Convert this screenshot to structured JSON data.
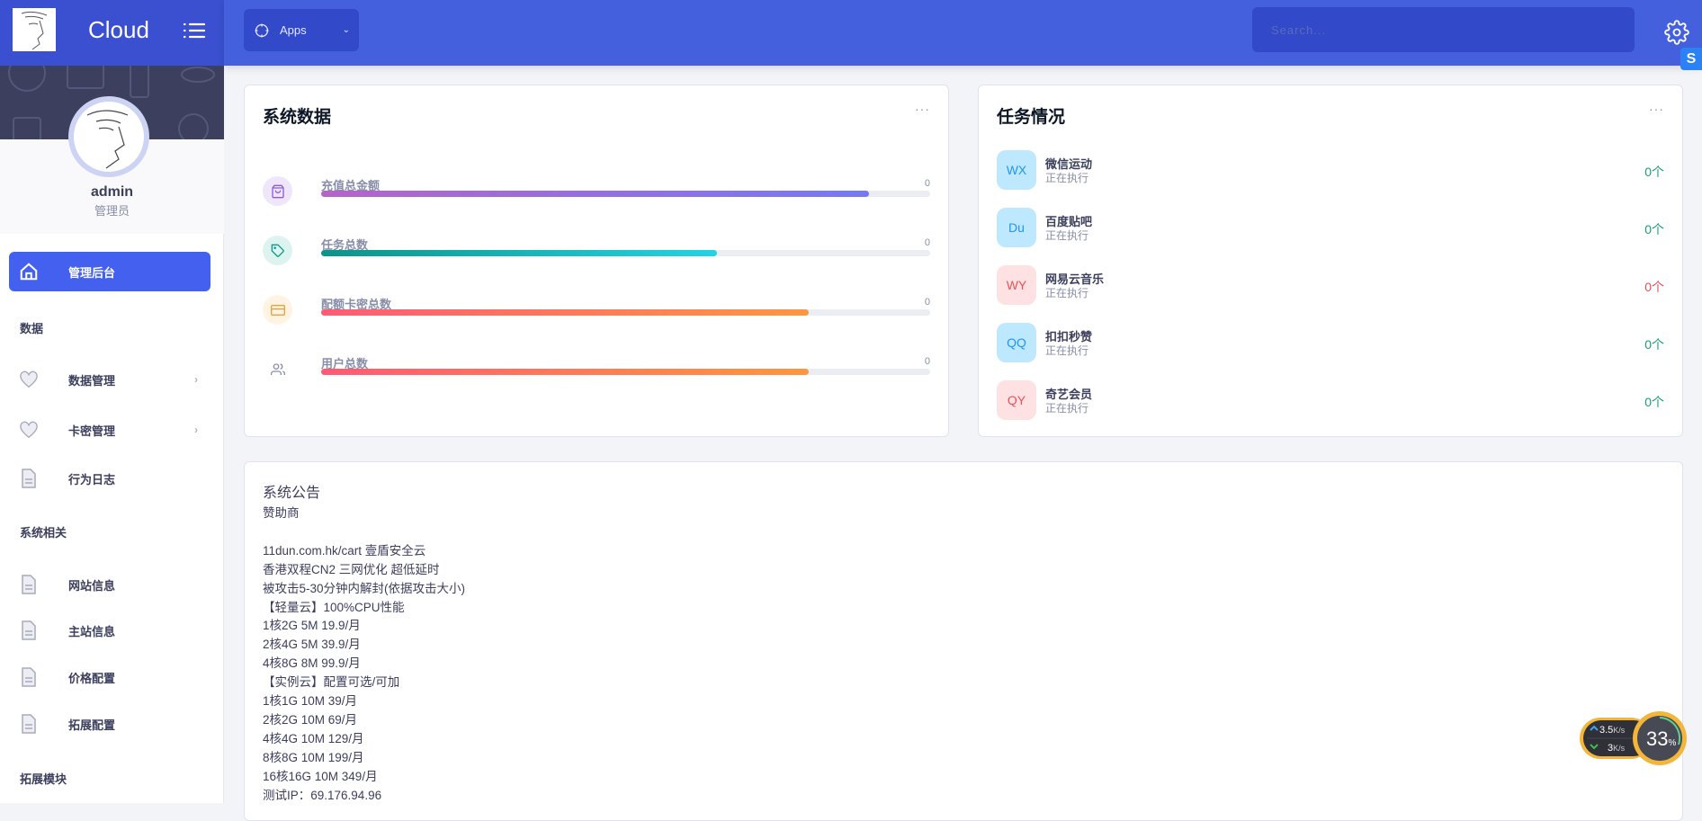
{
  "header": {
    "brand": "Cloud",
    "apps_label": "Apps",
    "search_placeholder": "Search...",
    "badge": "S"
  },
  "user": {
    "name": "admin",
    "role": "管理员"
  },
  "sidebar": {
    "active": {
      "label": "管理后台",
      "icon": "home-icon"
    },
    "sections": [
      {
        "title": "数据",
        "items": [
          {
            "label": "数据管理",
            "icon": "heart-icon",
            "has_arrow": true
          },
          {
            "label": "卡密管理",
            "icon": "heart-icon",
            "has_arrow": true
          },
          {
            "label": "行为日志",
            "icon": "file-icon"
          }
        ]
      },
      {
        "title": "系统相关",
        "items": [
          {
            "label": "网站信息",
            "icon": "file-icon"
          },
          {
            "label": "主站信息",
            "icon": "file-icon"
          },
          {
            "label": "价格配置",
            "icon": "file-icon"
          },
          {
            "label": "拓展配置",
            "icon": "file-icon"
          }
        ]
      },
      {
        "title": "拓展模块",
        "items": []
      }
    ]
  },
  "stats": {
    "title": "系统数据",
    "more": "···",
    "rows": [
      {
        "label": "充值总金额",
        "value": "0",
        "icon": "shopping-bag-icon",
        "progress": 0.9,
        "colors": [
          "#b565c8",
          "#7579f5"
        ],
        "bg": "#efe6fb",
        "fg": "#8e5cd9"
      },
      {
        "label": "任务总数",
        "value": "0",
        "icon": "tag-icon",
        "progress": 0.65,
        "colors": [
          "#0b9488",
          "#23d3e6"
        ],
        "bg": "#ddf3ef",
        "fg": "#0e9c8d"
      },
      {
        "label": "配额卡密总数",
        "value": "0",
        "icon": "credit-card-icon",
        "progress": 0.8,
        "colors": [
          "#ff5a75",
          "#fd963f"
        ],
        "bg": "#fff4e3",
        "fg": "#e9a23b"
      },
      {
        "label": "用户总数",
        "value": "0",
        "icon": "users-icon",
        "progress": 0.8,
        "colors": [
          "#ff5a75",
          "#fd963f"
        ],
        "bg": "transparent",
        "fg": "#888ea8"
      }
    ]
  },
  "tasks": {
    "title": "任务情况",
    "more": "···",
    "rows": [
      {
        "abbr": "WX",
        "name": "微信运动",
        "status": "正在执行",
        "count": "0个",
        "tone": "blue"
      },
      {
        "abbr": "Du",
        "name": "百度贴吧",
        "status": "正在执行",
        "count": "0个",
        "tone": "blue"
      },
      {
        "abbr": "WY",
        "name": "网易云音乐",
        "status": "正在执行",
        "count": "0个",
        "tone": "red"
      },
      {
        "abbr": "QQ",
        "name": "扣扣秒赞",
        "status": "正在执行",
        "count": "0个",
        "tone": "blue"
      },
      {
        "abbr": "QY",
        "name": "奇艺会员",
        "status": "正在执行",
        "count": "0个",
        "tone": "red"
      }
    ]
  },
  "notice": {
    "title": "系统公告",
    "lines": [
      "赞助商",
      "",
      "11dun.com.hk/cart 壹盾安全云",
      "香港双程CN2 三网优化 超低延时",
      "被攻击5-30分钟内解封(依据攻击大小)",
      "【轻量云】100%CPU性能",
      "1核2G 5M 19.9/月",
      "2核4G 5M 39.9/月",
      "4核8G 8M 99.9/月",
      "【实例云】配置可选/可加",
      "1核1G 10M 39/月",
      "2核2G 10M 69/月",
      "4核4G 10M 129/月",
      "8核8G 10M 199/月",
      "16核16G 10M 349/月",
      "测试IP：69.176.94.96"
    ]
  },
  "widget": {
    "up": "3.5",
    "down": "3",
    "unit": "K/s",
    "percent": "33",
    "percent_sign": "%"
  },
  "colors": {
    "primary": "#4361ee",
    "header": "#4560dc",
    "green": "#1b9e77",
    "red": "#e7515a"
  }
}
